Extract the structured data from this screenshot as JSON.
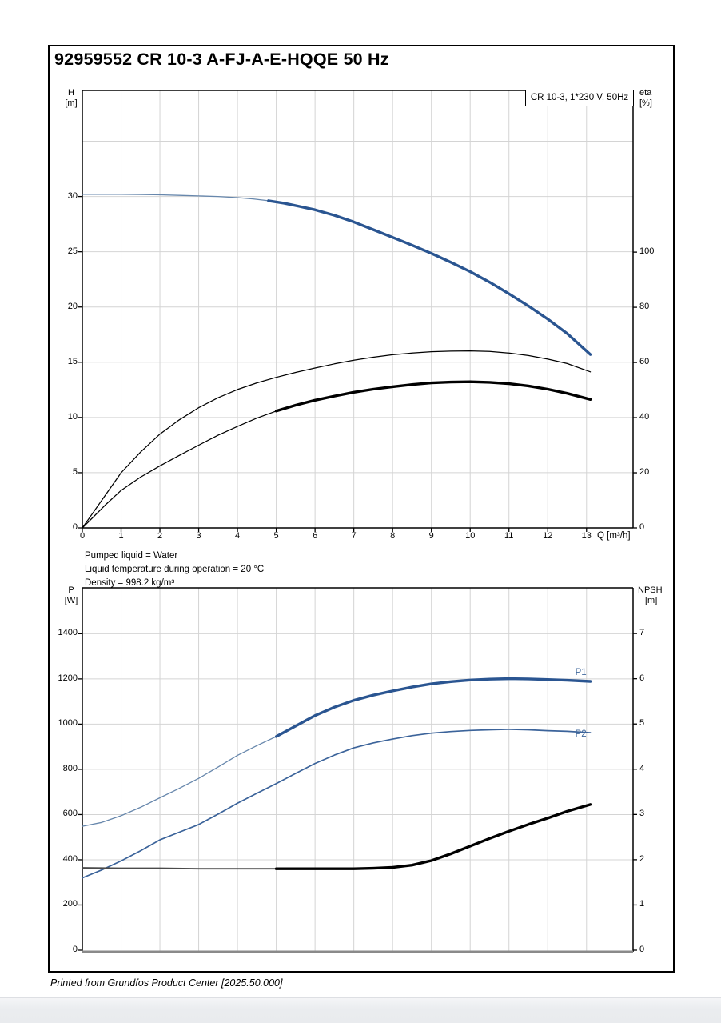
{
  "page": {
    "title": "92959552 CR 10-3 A-FJ-A-E-HQQE 50 Hz",
    "footer": "Printed from Grundfos Product Center [2025.50.000]"
  },
  "info_lines": {
    "line1": "Pumped liquid = Water",
    "line2": "Liquid temperature during operation = 20 °C",
    "line3": "Density = 998.2 kg/m³"
  },
  "colors": {
    "blue_thick": "#2a5591",
    "blue_thin": "#6787ac",
    "blue_mid": "#3b639a",
    "black": "#000000",
    "npsh_thin": "#4a4a4a",
    "grid": "#d4d4d4",
    "axis_black": "#000000",
    "axis_gray": "#8a8a8a",
    "label_blue": "#41699c"
  },
  "chart_data": [
    {
      "id": "head-efficiency-chart",
      "type": "line",
      "legend_box": "CR 10-3, 1*230 V, 50Hz",
      "x_axis": {
        "label": "Q [m³/h]",
        "min": 0,
        "max": 14.2,
        "ticks": [
          0,
          1,
          2,
          3,
          4,
          5,
          6,
          7,
          8,
          9,
          10,
          11,
          12,
          13
        ],
        "grid": [
          1,
          2,
          3,
          4,
          5,
          6,
          7,
          8,
          9,
          10,
          11,
          12,
          13
        ]
      },
      "y_left": {
        "label_line1": "H",
        "label_line2": "[m]",
        "min": 0,
        "max": 39.6,
        "ticks": [
          0,
          5,
          10,
          15,
          20,
          25,
          30
        ],
        "grid_extra": [
          35
        ]
      },
      "y_right": {
        "label_line1": "eta",
        "label_line2": "[%]",
        "min": 0,
        "max": 158.6,
        "ticks": [
          0,
          20,
          40,
          60,
          80,
          100
        ]
      },
      "series": [
        {
          "name": "head-curve",
          "axis": "left",
          "style": "blue-duty",
          "thin_until": 4.8,
          "points": [
            [
              0,
              30.2
            ],
            [
              0.5,
              30.2
            ],
            [
              1,
              30.2
            ],
            [
              1.5,
              30.18
            ],
            [
              2,
              30.15
            ],
            [
              2.5,
              30.1
            ],
            [
              3,
              30.05
            ],
            [
              3.5,
              30.0
            ],
            [
              4,
              29.9
            ],
            [
              4.4,
              29.78
            ],
            [
              4.8,
              29.62
            ],
            [
              5.2,
              29.4
            ],
            [
              5.6,
              29.1
            ],
            [
              6,
              28.8
            ],
            [
              6.5,
              28.3
            ],
            [
              7,
              27.7
            ],
            [
              7.5,
              27.0
            ],
            [
              8,
              26.3
            ],
            [
              8.5,
              25.6
            ],
            [
              9,
              24.85
            ],
            [
              9.5,
              24.05
            ],
            [
              10,
              23.2
            ],
            [
              10.5,
              22.25
            ],
            [
              11,
              21.2
            ],
            [
              11.5,
              20.1
            ],
            [
              12,
              18.9
            ],
            [
              12.5,
              17.6
            ],
            [
              13.1,
              15.7
            ]
          ]
        },
        {
          "name": "eta-pump",
          "axis": "right",
          "style": "black-line",
          "thin_until": null,
          "points": [
            [
              0,
              0
            ],
            [
              0.3,
              6
            ],
            [
              0.6,
              12
            ],
            [
              1,
              20
            ],
            [
              1.5,
              27.5
            ],
            [
              2,
              34
            ],
            [
              2.5,
              39.2
            ],
            [
              3,
              43.6
            ],
            [
              3.5,
              47.2
            ],
            [
              4,
              50.2
            ],
            [
              4.5,
              52.6
            ],
            [
              5,
              54.6
            ],
            [
              5.5,
              56.4
            ],
            [
              6,
              58
            ],
            [
              6.5,
              59.5
            ],
            [
              7,
              60.8
            ],
            [
              7.5,
              61.9
            ],
            [
              8,
              62.8
            ],
            [
              8.5,
              63.4
            ],
            [
              9,
              63.9
            ],
            [
              9.5,
              64.1
            ],
            [
              10,
              64.2
            ],
            [
              10.5,
              64
            ],
            [
              11,
              63.4
            ],
            [
              11.5,
              62.5
            ],
            [
              12,
              61.2
            ],
            [
              12.5,
              59.6
            ],
            [
              13.1,
              56.6
            ]
          ]
        },
        {
          "name": "eta-pump-motor",
          "axis": "right",
          "style": "black-duty",
          "thin_until": 5,
          "points": [
            [
              0,
              0
            ],
            [
              0.3,
              4.2
            ],
            [
              0.6,
              8.4
            ],
            [
              1,
              13.6
            ],
            [
              1.5,
              18.4
            ],
            [
              2,
              22.5
            ],
            [
              2.5,
              26.3
            ],
            [
              3,
              30
            ],
            [
              3.5,
              33.6
            ],
            [
              4,
              36.8
            ],
            [
              4.5,
              39.8
            ],
            [
              5,
              42.4
            ],
            [
              5.5,
              44.5
            ],
            [
              6,
              46.3
            ],
            [
              6.5,
              47.8
            ],
            [
              7,
              49.2
            ],
            [
              7.5,
              50.3
            ],
            [
              8,
              51.2
            ],
            [
              8.5,
              52
            ],
            [
              9,
              52.6
            ],
            [
              9.5,
              52.9
            ],
            [
              10,
              53
            ],
            [
              10.5,
              52.8
            ],
            [
              11,
              52.3
            ],
            [
              11.5,
              51.5
            ],
            [
              12,
              50.3
            ],
            [
              12.5,
              48.8
            ],
            [
              13.1,
              46.6
            ]
          ]
        }
      ]
    },
    {
      "id": "power-npsh-chart",
      "type": "line",
      "x_axis": {
        "label": "",
        "min": 0,
        "max": 14.2,
        "ticks": [],
        "grid": [
          1,
          2,
          3,
          4,
          5,
          6,
          7,
          8,
          9,
          10,
          11,
          12,
          13
        ]
      },
      "y_left": {
        "label_line1": "P",
        "label_line2": "[W]",
        "min": 0,
        "max": 1603,
        "ticks": [
          0,
          200,
          400,
          600,
          800,
          1000,
          1200,
          1400
        ],
        "grid_extra": []
      },
      "y_right": {
        "label_line1": "NPSH",
        "label_line2": "[m]",
        "min": 0,
        "max": 8.01,
        "ticks": [
          0,
          1,
          2,
          3,
          4,
          5,
          6,
          7
        ]
      },
      "series": [
        {
          "name": "P1",
          "axis": "left",
          "style": "blue-duty",
          "thin_until": 5,
          "label": "P1",
          "points": [
            [
              0,
              548
            ],
            [
              0.5,
              565
            ],
            [
              1,
              595
            ],
            [
              1.5,
              632
            ],
            [
              2,
              674
            ],
            [
              2.5,
              716
            ],
            [
              3,
              760
            ],
            [
              3.5,
              810
            ],
            [
              4,
              862
            ],
            [
              4.5,
              905
            ],
            [
              5,
              945
            ],
            [
              5.5,
              992
            ],
            [
              6,
              1038
            ],
            [
              6.5,
              1075
            ],
            [
              7,
              1105
            ],
            [
              7.5,
              1128
            ],
            [
              8,
              1147
            ],
            [
              8.5,
              1164
            ],
            [
              9,
              1178
            ],
            [
              9.5,
              1188
            ],
            [
              10,
              1195
            ],
            [
              10.5,
              1199
            ],
            [
              11,
              1201
            ],
            [
              11.5,
              1200
            ],
            [
              12,
              1197
            ],
            [
              12.5,
              1194
            ],
            [
              13.1,
              1189
            ]
          ]
        },
        {
          "name": "P2",
          "axis": "left",
          "style": "blue-line",
          "thin_until": null,
          "label": "P2",
          "points": [
            [
              0,
              320
            ],
            [
              0.5,
              355
            ],
            [
              1,
              395
            ],
            [
              1.5,
              440
            ],
            [
              2,
              488
            ],
            [
              2.5,
              522
            ],
            [
              3,
              556
            ],
            [
              3.5,
              602
            ],
            [
              4,
              650
            ],
            [
              4.5,
              694
            ],
            [
              5,
              737
            ],
            [
              5.5,
              782
            ],
            [
              6,
              826
            ],
            [
              6.5,
              863
            ],
            [
              7,
              895
            ],
            [
              7.5,
              917
            ],
            [
              8,
              934
            ],
            [
              8.5,
              949
            ],
            [
              9,
              960
            ],
            [
              9.5,
              967
            ],
            [
              10,
              972
            ],
            [
              10.5,
              975
            ],
            [
              11,
              977
            ],
            [
              11.5,
              975
            ],
            [
              12,
              971
            ],
            [
              12.5,
              968
            ],
            [
              13.1,
              962
            ]
          ]
        },
        {
          "name": "NPSH",
          "axis": "right",
          "style": "npsh-duty",
          "thin_until": 5,
          "points": [
            [
              0,
              1.82
            ],
            [
              1,
              1.81
            ],
            [
              2,
              1.81
            ],
            [
              3,
              1.8
            ],
            [
              4,
              1.8
            ],
            [
              5,
              1.8
            ],
            [
              6,
              1.8
            ],
            [
              7,
              1.8
            ],
            [
              7.5,
              1.81
            ],
            [
              8,
              1.83
            ],
            [
              8.5,
              1.88
            ],
            [
              9,
              1.98
            ],
            [
              9.5,
              2.13
            ],
            [
              10,
              2.3
            ],
            [
              10.5,
              2.47
            ],
            [
              11,
              2.63
            ],
            [
              11.5,
              2.78
            ],
            [
              12,
              2.92
            ],
            [
              12.5,
              3.07
            ],
            [
              13.1,
              3.22
            ]
          ]
        }
      ]
    }
  ]
}
